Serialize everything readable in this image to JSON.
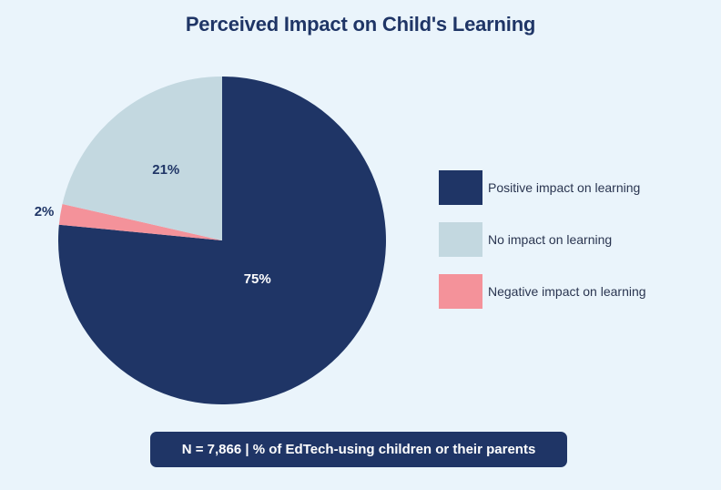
{
  "chart_data": {
    "type": "pie",
    "title": "Perceived Impact on Child's Learning",
    "slices": [
      {
        "label": "Positive impact on learning",
        "value": 75,
        "display": "75%",
        "color": "#1f3566",
        "text_color": "#ffffff"
      },
      {
        "label": "Negative impact on learning",
        "value": 2,
        "display": "2%",
        "color": "#f4929a",
        "text_color": "#1f3566"
      },
      {
        "label": "No impact on learning",
        "value": 21,
        "display": "21%",
        "color": "#c3d8e0",
        "text_color": "#1f3566"
      }
    ],
    "legend": [
      {
        "label": "Positive impact on learning",
        "color": "#1f3566"
      },
      {
        "label": "No impact on learning",
        "color": "#c3d8e0"
      },
      {
        "label": "Negative impact on learning",
        "color": "#f4929a"
      }
    ],
    "legend_position": "right"
  },
  "footnote": "N = 7,866 | % of EdTech-using children or their parents"
}
